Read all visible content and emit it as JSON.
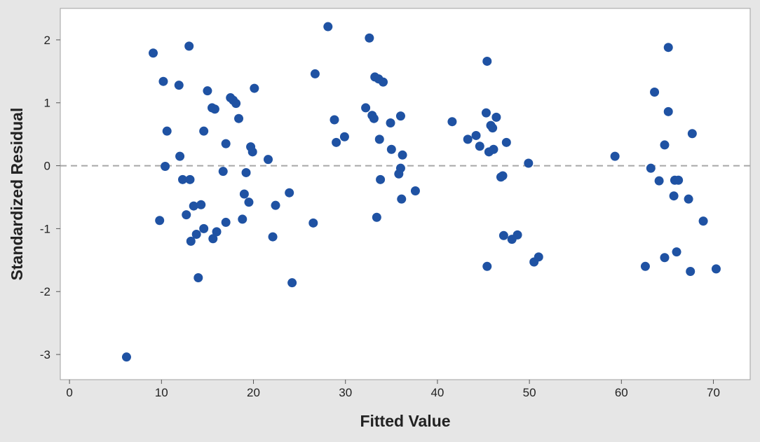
{
  "chart_data": {
    "type": "scatter",
    "title": "",
    "xlabel": "Fitted Value",
    "ylabel": "Standardized Residual",
    "xlim": [
      -1,
      74
    ],
    "ylim": [
      -3.4,
      2.5
    ],
    "xticks": [
      0,
      10,
      20,
      30,
      40,
      50,
      60,
      70
    ],
    "yticks": [
      -3,
      -2,
      -1,
      0,
      1,
      2
    ],
    "grid": false,
    "reference_line": {
      "y": 0,
      "style": "dashed",
      "color": "#a6a6a6"
    },
    "colors": {
      "point": "#1f52a3",
      "plot_bg": "#ffffff",
      "figure_bg": "#e6e6e6"
    },
    "points": [
      [
        6.2,
        -3.04
      ],
      [
        9.1,
        1.79
      ],
      [
        9.8,
        -0.87
      ],
      [
        10.2,
        1.34
      ],
      [
        10.4,
        -0.01
      ],
      [
        10.6,
        0.55
      ],
      [
        11.9,
        1.28
      ],
      [
        12.0,
        0.15
      ],
      [
        12.3,
        -0.22
      ],
      [
        12.7,
        -0.78
      ],
      [
        13.0,
        1.9
      ],
      [
        13.1,
        -0.22
      ],
      [
        13.2,
        -1.2
      ],
      [
        13.5,
        -0.64
      ],
      [
        13.8,
        -1.09
      ],
      [
        14.0,
        -1.78
      ],
      [
        14.3,
        -0.62
      ],
      [
        14.6,
        -1.0
      ],
      [
        14.6,
        0.55
      ],
      [
        15.0,
        1.19
      ],
      [
        15.5,
        0.92
      ],
      [
        15.6,
        -1.16
      ],
      [
        15.8,
        0.9
      ],
      [
        16.0,
        -1.05
      ],
      [
        16.7,
        -0.09
      ],
      [
        17.0,
        0.35
      ],
      [
        17.0,
        -0.9
      ],
      [
        17.5,
        1.08
      ],
      [
        17.8,
        1.04
      ],
      [
        18.1,
        0.99
      ],
      [
        18.4,
        0.75
      ],
      [
        18.8,
        -0.85
      ],
      [
        19.0,
        -0.45
      ],
      [
        19.2,
        -0.11
      ],
      [
        19.5,
        -0.58
      ],
      [
        19.7,
        0.3
      ],
      [
        19.9,
        0.22
      ],
      [
        20.1,
        1.23
      ],
      [
        21.6,
        0.1
      ],
      [
        22.1,
        -1.13
      ],
      [
        22.4,
        -0.63
      ],
      [
        23.9,
        -0.43
      ],
      [
        24.2,
        -1.86
      ],
      [
        26.5,
        -0.91
      ],
      [
        26.7,
        1.46
      ],
      [
        28.1,
        2.21
      ],
      [
        28.8,
        0.73
      ],
      [
        29.0,
        0.37
      ],
      [
        29.9,
        0.46
      ],
      [
        32.2,
        0.92
      ],
      [
        32.6,
        2.03
      ],
      [
        32.9,
        0.8
      ],
      [
        33.1,
        0.75
      ],
      [
        33.2,
        1.41
      ],
      [
        33.4,
        -0.82
      ],
      [
        33.6,
        1.38
      ],
      [
        33.7,
        0.42
      ],
      [
        33.8,
        -0.22
      ],
      [
        34.1,
        1.33
      ],
      [
        34.9,
        0.68
      ],
      [
        35.0,
        0.26
      ],
      [
        35.8,
        -0.13
      ],
      [
        36.0,
        0.79
      ],
      [
        36.0,
        -0.04
      ],
      [
        36.1,
        -0.53
      ],
      [
        36.2,
        0.17
      ],
      [
        37.6,
        -0.4
      ],
      [
        41.6,
        0.7
      ],
      [
        43.3,
        0.42
      ],
      [
        44.2,
        0.48
      ],
      [
        44.6,
        0.31
      ],
      [
        45.3,
        0.84
      ],
      [
        45.4,
        -1.6
      ],
      [
        45.4,
        1.66
      ],
      [
        45.6,
        0.22
      ],
      [
        45.8,
        0.64
      ],
      [
        46.0,
        0.6
      ],
      [
        46.1,
        0.26
      ],
      [
        46.4,
        0.77
      ],
      [
        46.9,
        -0.18
      ],
      [
        47.1,
        -0.16
      ],
      [
        47.2,
        -1.11
      ],
      [
        47.5,
        0.37
      ],
      [
        48.1,
        -1.17
      ],
      [
        48.7,
        -1.1
      ],
      [
        49.9,
        0.04
      ],
      [
        50.5,
        -1.53
      ],
      [
        51.0,
        -1.45
      ],
      [
        59.3,
        0.15
      ],
      [
        62.6,
        -1.6
      ],
      [
        63.2,
        -0.04
      ],
      [
        63.6,
        1.17
      ],
      [
        64.1,
        -0.24
      ],
      [
        64.7,
        0.33
      ],
      [
        64.7,
        -1.46
      ],
      [
        65.1,
        0.86
      ],
      [
        65.1,
        1.88
      ],
      [
        65.7,
        -0.48
      ],
      [
        65.8,
        -0.23
      ],
      [
        66.0,
        -1.37
      ],
      [
        66.2,
        -0.23
      ],
      [
        67.3,
        -0.53
      ],
      [
        67.5,
        -1.68
      ],
      [
        67.7,
        0.51
      ],
      [
        68.9,
        -0.88
      ],
      [
        70.3,
        -1.64
      ]
    ]
  }
}
